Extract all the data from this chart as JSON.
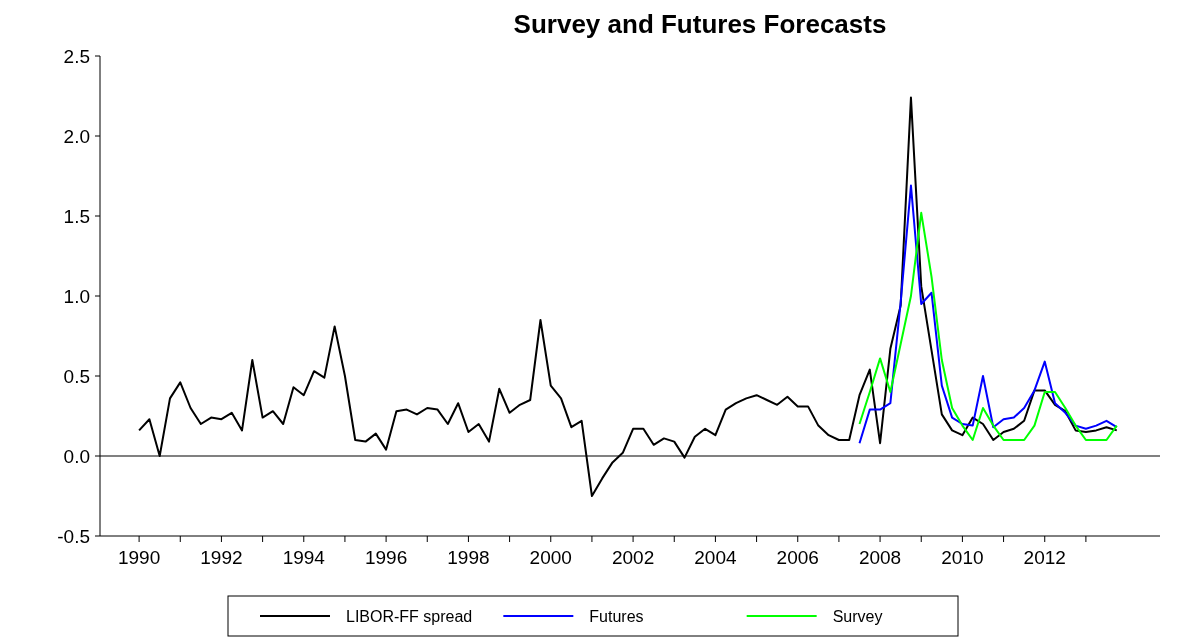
{
  "chart_data": {
    "type": "line",
    "title": "Survey and Futures Forecasts",
    "xlim": [
      1989.05,
      2014.8
    ],
    "xticks": [
      1990,
      {
        "value": 1991,
        "label": null
      },
      1992,
      {
        "value": 1993,
        "label": null
      },
      1994,
      {
        "value": 1995,
        "label": null
      },
      1996,
      {
        "value": 1997,
        "label": null
      },
      1998,
      {
        "value": 1999,
        "label": null
      },
      2000,
      {
        "value": 2001,
        "label": null
      },
      2002,
      {
        "value": 2003,
        "label": null
      },
      2004,
      {
        "value": 2005,
        "label": null
      },
      2006,
      {
        "value": 2007,
        "label": null
      },
      2008,
      {
        "value": 2009,
        "label": null
      },
      2010,
      {
        "value": 2011,
        "label": null
      },
      2012,
      {
        "value": 2013,
        "label": null
      }
    ],
    "ylim": [
      -0.5,
      2.5
    ],
    "yticks": [
      -0.5,
      {
        "value": 0,
        "label": "0.0"
      },
      0.5,
      {
        "value": 1,
        "label": "1.0"
      },
      1.5,
      {
        "value": 2,
        "label": "2.0"
      },
      2.5
    ],
    "grid": false,
    "legend": "bottom",
    "ref_lines": [
      {
        "axis": "y",
        "value": 0,
        "color": "#808080"
      }
    ],
    "series": [
      {
        "name": "LIBOR-FF spread",
        "color": "#000000",
        "x": [
          1990,
          1990.25,
          1990.5,
          1990.75,
          1991,
          1991.25,
          1991.5,
          1991.75,
          1992,
          1992.25,
          1992.5,
          1992.75,
          1993,
          1993.25,
          1993.5,
          1993.75,
          1994,
          1994.25,
          1994.5,
          1994.75,
          1995,
          1995.25,
          1995.5,
          1995.75,
          1996,
          1996.25,
          1996.5,
          1996.75,
          1997,
          1997.25,
          1997.5,
          1997.75,
          1998,
          1998.25,
          1998.5,
          1998.75,
          1999,
          1999.25,
          1999.5,
          1999.75,
          2000,
          2000.25,
          2000.5,
          2000.75,
          2001,
          2001.25,
          2001.5,
          2001.75,
          2002,
          2002.25,
          2002.5,
          2002.75,
          2003,
          2003.25,
          2003.5,
          2003.75,
          2004,
          2004.25,
          2004.5,
          2004.75,
          2005,
          2005.25,
          2005.5,
          2005.75,
          2006,
          2006.25,
          2006.5,
          2006.75,
          2007,
          2007.25,
          2007.5,
          2007.75,
          2008,
          2008.25,
          2008.5,
          2008.75,
          2009,
          2009.25,
          2009.5,
          2009.75,
          2010,
          2010.25,
          2010.5,
          2010.75,
          2011,
          2011.25,
          2011.5,
          2011.75,
          2012,
          2012.25,
          2012.5,
          2012.75,
          2013,
          2013.25,
          2013.5,
          2013.75
        ],
        "values": [
          0.16,
          0.23,
          0.0,
          0.36,
          0.46,
          0.3,
          0.2,
          0.24,
          0.23,
          0.27,
          0.16,
          0.6,
          0.24,
          0.28,
          0.2,
          0.43,
          0.38,
          0.53,
          0.49,
          0.81,
          0.5,
          0.1,
          0.09,
          0.14,
          0.04,
          0.28,
          0.29,
          0.26,
          0.3,
          0.29,
          0.2,
          0.33,
          0.15,
          0.2,
          0.09,
          0.42,
          0.27,
          0.32,
          0.35,
          0.85,
          0.44,
          0.36,
          0.18,
          0.22,
          -0.25,
          -0.14,
          -0.04,
          0.02,
          0.17,
          0.17,
          0.07,
          0.11,
          0.09,
          -0.01,
          0.12,
          0.17,
          0.13,
          0.29,
          0.33,
          0.36,
          0.38,
          0.35,
          0.32,
          0.37,
          0.31,
          0.31,
          0.19,
          0.13,
          0.1,
          0.1,
          0.38,
          0.54,
          0.08,
          0.67,
          0.94,
          2.24,
          1.06,
          0.66,
          0.26,
          0.16,
          0.13,
          0.24,
          0.2,
          0.1,
          0.15,
          0.17,
          0.22,
          0.41,
          0.41,
          0.32,
          0.28,
          0.16,
          0.15,
          0.16,
          0.18,
          0.16
        ]
      },
      {
        "name": "Futures",
        "color": "#0000ff",
        "x": [
          2007.5,
          2007.75,
          2008,
          2008.25,
          2008.5,
          2008.75,
          2009,
          2009.25,
          2009.5,
          2009.75,
          2010,
          2010.25,
          2010.5,
          2010.75,
          2011,
          2011.25,
          2011.5,
          2011.75,
          2012,
          2012.25,
          2012.5,
          2012.75,
          2013,
          2013.25,
          2013.5,
          2013.75
        ],
        "values": [
          0.08,
          0.29,
          0.29,
          0.33,
          0.96,
          1.69,
          0.95,
          1.02,
          0.44,
          0.24,
          0.2,
          0.19,
          0.5,
          0.18,
          0.23,
          0.24,
          0.3,
          0.41,
          0.59,
          0.33,
          0.27,
          0.19,
          0.17,
          0.19,
          0.22,
          0.18
        ]
      },
      {
        "name": "Survey",
        "color": "#00ff00",
        "x": [
          2007.5,
          2007.75,
          2008,
          2008.25,
          2008.5,
          2008.75,
          2009,
          2009.25,
          2009.5,
          2009.75,
          2010,
          2010.25,
          2010.5,
          2010.75,
          2011,
          2011.25,
          2011.5,
          2011.75,
          2012,
          2012.25,
          2012.5,
          2012.75,
          2013,
          2013.25,
          2013.5,
          2013.75
        ],
        "values": [
          0.2,
          0.4,
          0.61,
          0.4,
          0.7,
          1.0,
          1.52,
          1.12,
          0.6,
          0.3,
          0.19,
          0.1,
          0.3,
          0.19,
          0.1,
          0.1,
          0.1,
          0.19,
          0.4,
          0.4,
          0.3,
          0.19,
          0.1,
          0.1,
          0.1,
          0.19
        ]
      }
    ]
  }
}
